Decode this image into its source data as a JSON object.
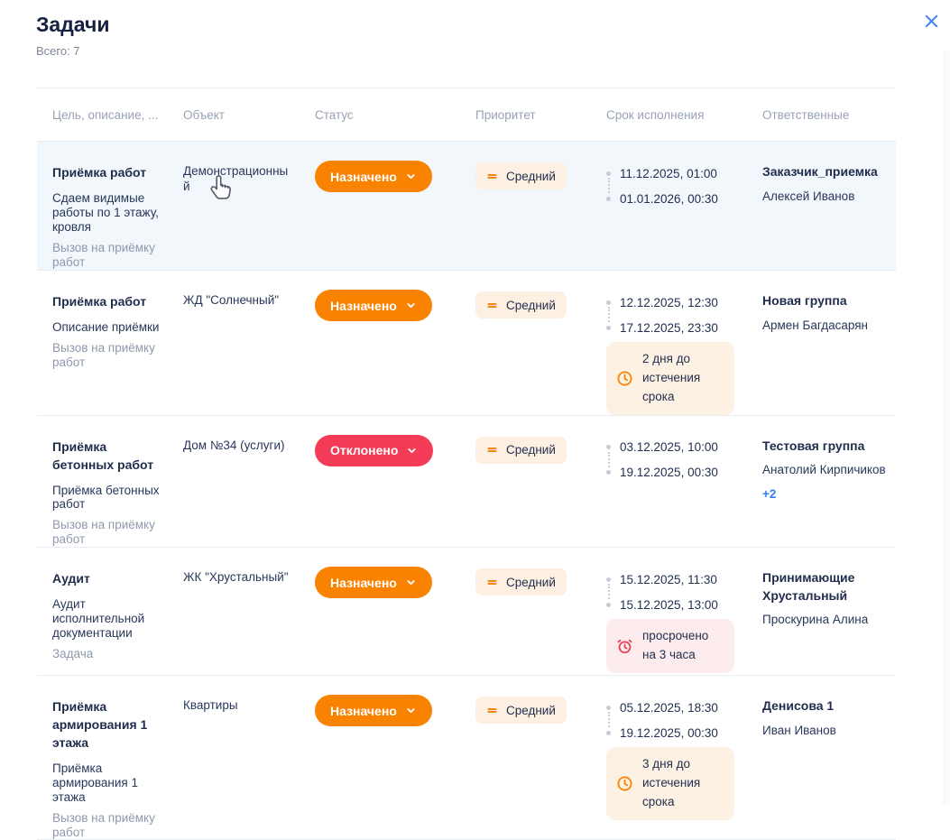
{
  "modal": {
    "title": "Задачи",
    "total_label": "Всего: 7"
  },
  "colors": {
    "accent_orange": "#F98201",
    "status_rejected_red": "#F43B57",
    "priority_badge_bg": "#FDF0E2",
    "warning_badge_bg": "#FDF1E4",
    "overdue_badge_bg": "#FDECEE",
    "overdue_icon_red": "#E8425A",
    "link_blue": "#2F80ED",
    "close_icon_blue": "#3F83F8",
    "highlighted_row_bg": "#F2F7FC",
    "text_dark": "#22304F",
    "text_gray": "#8E99AB"
  },
  "table": {
    "columns": [
      "Цель, описание, ...",
      "Объект",
      "Статус",
      "Приоритет",
      "Срок исполнения",
      "Ответственные"
    ],
    "rows": [
      {
        "goal": "Приёмка работ",
        "description": "Сдаем видимые работы по 1 этажу, кровля",
        "task_type": "Вызов на приёмку работ",
        "object": "Демонстрационный",
        "status": {
          "label": "Назначено",
          "type": "assigned"
        },
        "priority": "Средний",
        "due": {
          "start": "11.12.2025, 01:00",
          "end": "01.01.2026, 00:30"
        },
        "responsible": {
          "group": "Заказчик_приемка",
          "names": [
            "Алексей Иванов"
          ]
        },
        "highlighted": true
      },
      {
        "goal": "Приёмка работ",
        "description": "Описание приёмки",
        "task_type": "Вызов на приёмку работ",
        "object": "ЖД \"Солнечный\"",
        "status": {
          "label": "Назначено",
          "type": "assigned"
        },
        "priority": "Средний",
        "due": {
          "start": "12.12.2025, 12:30",
          "end": "17.12.2025, 23:30",
          "badge": {
            "type": "warning",
            "text": "2 дня до истечения срока"
          }
        },
        "responsible": {
          "group": "Новая группа",
          "names": [
            "Армен Багдасарян"
          ]
        }
      },
      {
        "goal": "Приёмка бетонных работ",
        "description": "Приёмка бетонных работ",
        "task_type": "Вызов на приёмку работ",
        "object": "Дом №34 (услуги)",
        "status": {
          "label": "Отклонено",
          "type": "rejected"
        },
        "priority": "Средний",
        "due": {
          "start": "03.12.2025, 10:00",
          "end": "19.12.2025, 00:30"
        },
        "responsible": {
          "group": "Тестовая группа",
          "names": [
            "Анатолий Кирпичиков"
          ],
          "more": "+2"
        }
      },
      {
        "goal": "Аудит",
        "description": "Аудит исполнительной документации",
        "task_type": "Задача",
        "object": "ЖК \"Хрустальный\"",
        "status": {
          "label": "Назначено",
          "type": "assigned"
        },
        "priority": "Средний",
        "due": {
          "start": "15.12.2025, 11:30",
          "end": "15.12.2025, 13:00",
          "badge": {
            "type": "overdue",
            "text": "просрочено на 3 часа"
          }
        },
        "responsible": {
          "group": "Принимающие Хрустальный",
          "names": [
            "Проскурина Алина"
          ]
        }
      },
      {
        "goal": "Приёмка армирования 1 этажа",
        "description": "Приёмка армирования 1 этажа",
        "task_type": "Вызов на приёмку работ",
        "object": "Квартиры",
        "status": {
          "label": "Назначено",
          "type": "assigned"
        },
        "priority": "Средний",
        "due": {
          "start": "05.12.2025, 18:30",
          "end": "19.12.2025, 00:30",
          "badge": {
            "type": "warning",
            "text": "3 дня до истечения срока"
          }
        },
        "responsible": {
          "group": "Денисова 1",
          "names": [
            "Иван Иванов"
          ]
        }
      }
    ]
  }
}
